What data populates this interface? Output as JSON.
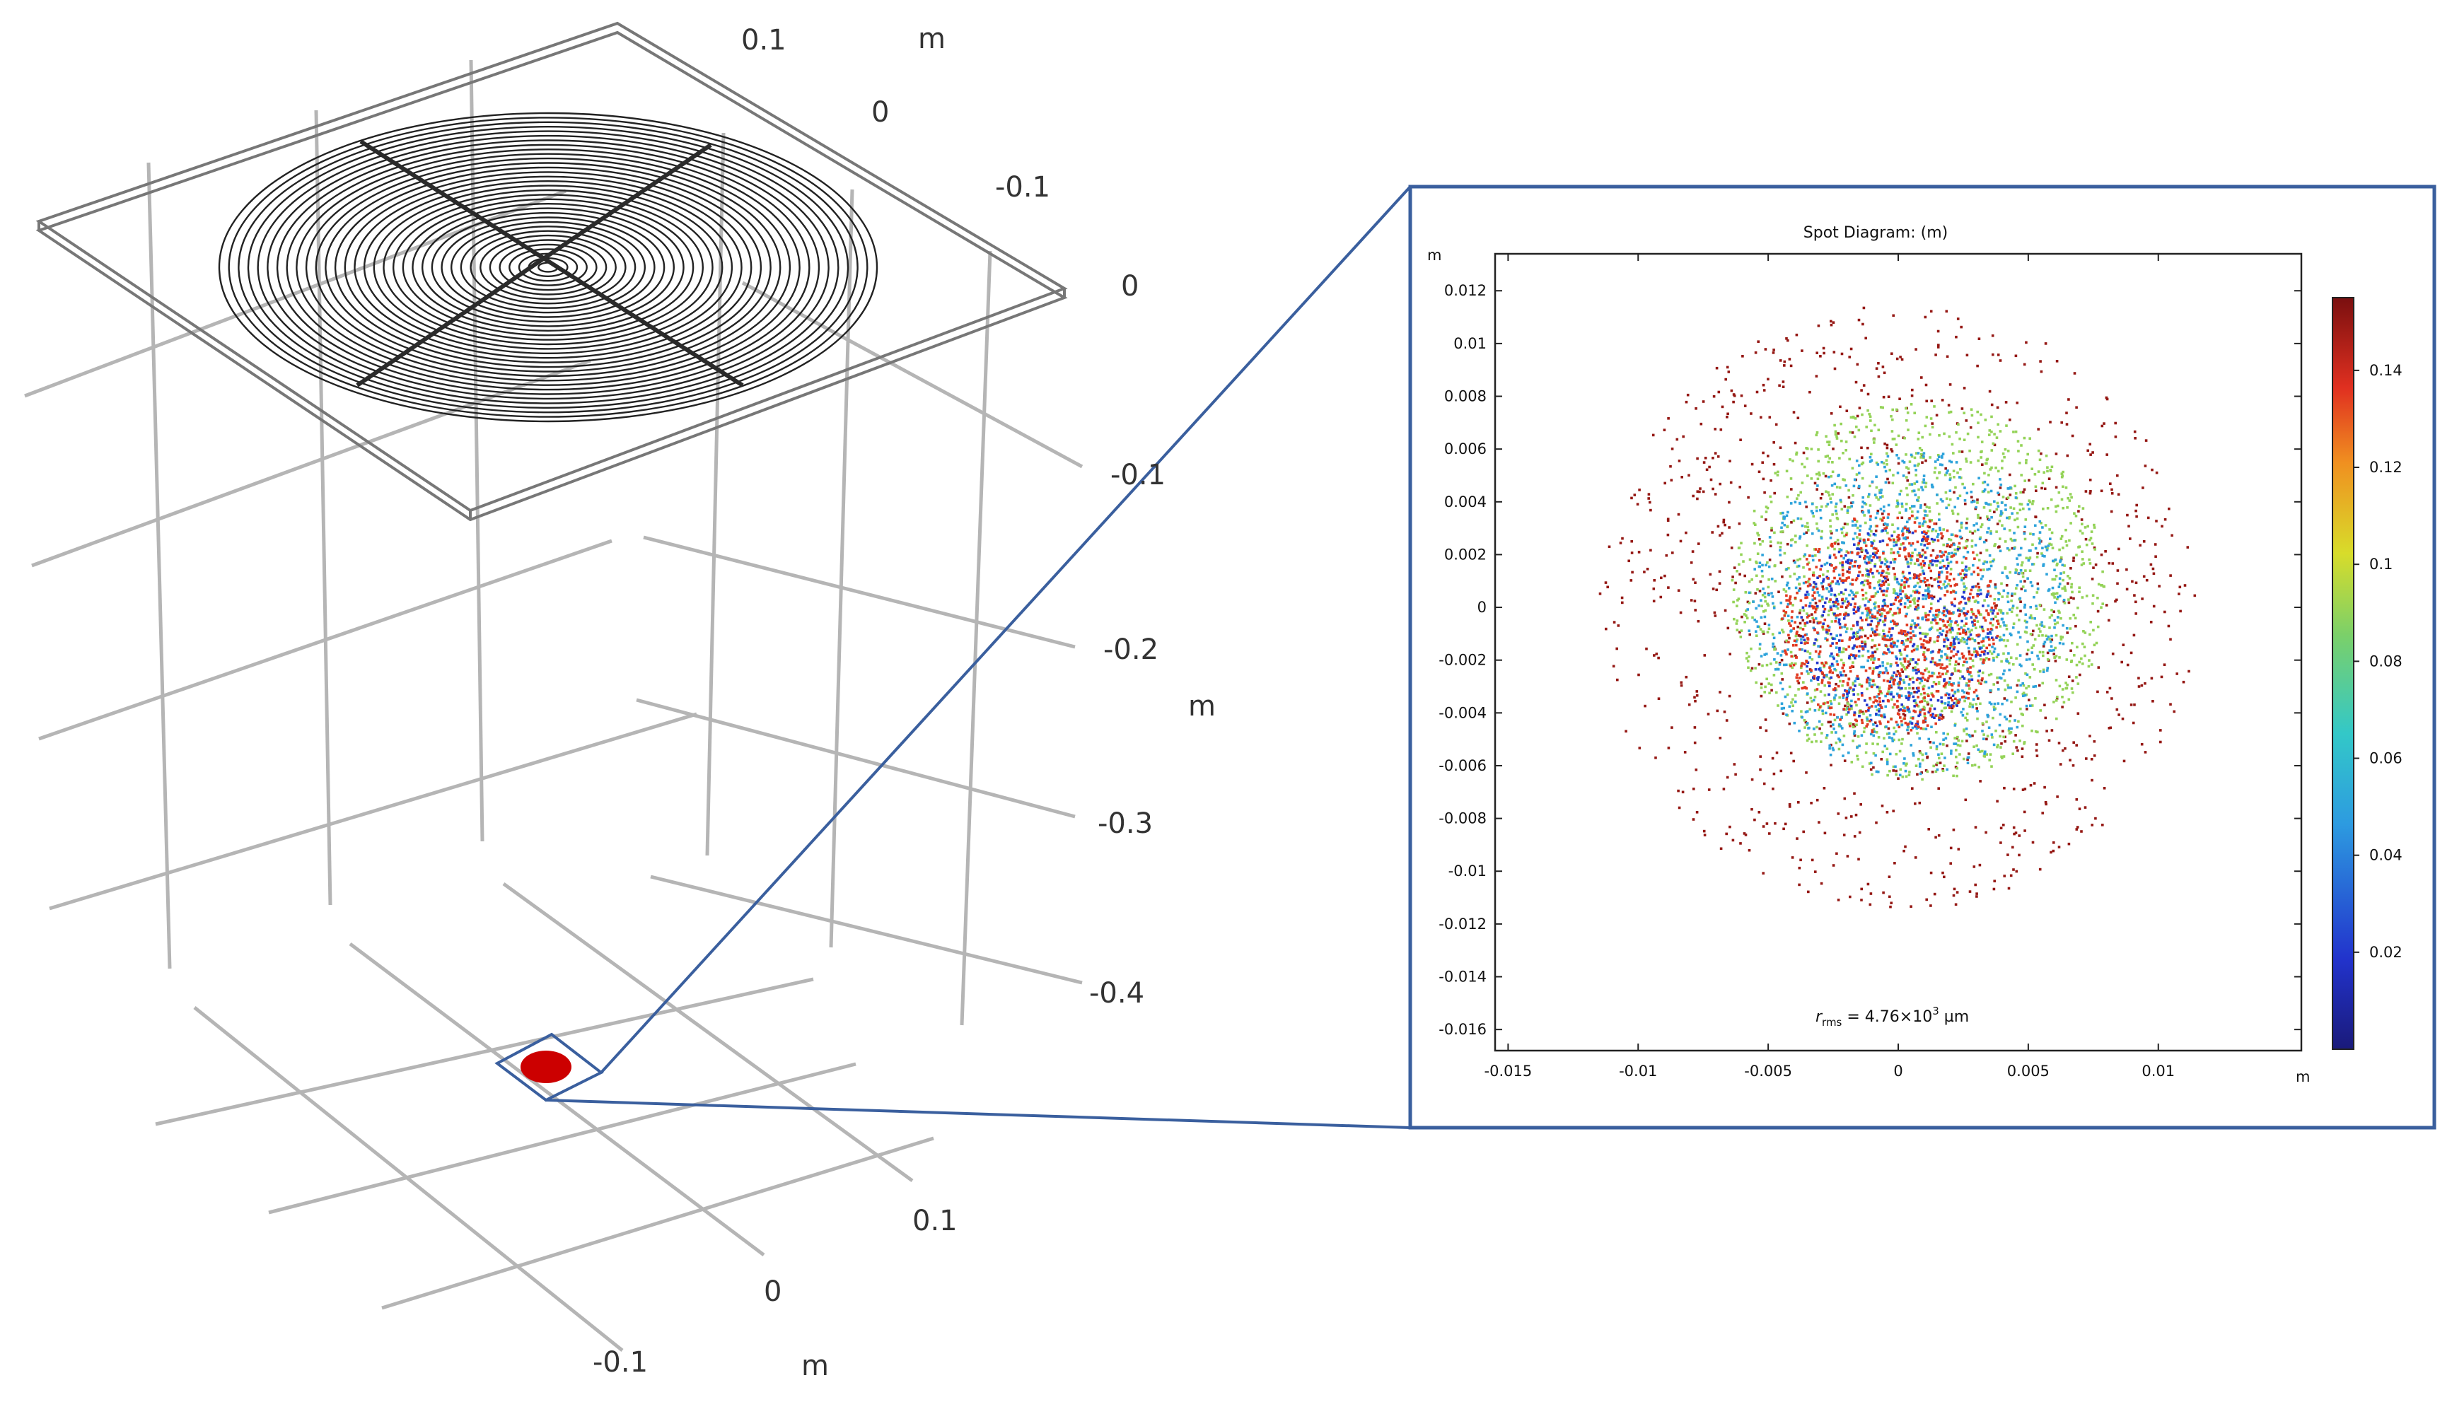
{
  "scene_3d": {
    "top_axis_labels": [
      "0.1",
      "0",
      "-0.1",
      "0"
    ],
    "top_axis_unit": "m",
    "z_axis_labels": [
      "-0.1",
      "-0.2",
      "-0.3",
      "-0.4"
    ],
    "z_axis_unit": "m",
    "bottom_axis_labels": [
      "0.1",
      "0",
      "-0.1"
    ],
    "bottom_axis_unit": "m",
    "spot_color": "#cc0000",
    "zoom_outline_color": "#3a5f9e"
  },
  "chart_data": {
    "type": "scatter",
    "title": "Spot Diagram: (m)",
    "xlabel": "m",
    "ylabel": "m",
    "xlim": [
      -0.0155,
      0.0155
    ],
    "ylim": [
      -0.0168,
      0.0134
    ],
    "x_ticks": [
      "-0.015",
      "-0.01",
      "-0.005",
      "0",
      "0.005",
      "0.01"
    ],
    "y_ticks": [
      "0.012",
      "0.01",
      "0.008",
      "0.006",
      "0.004",
      "0.002",
      "0",
      "-0.002",
      "-0.004",
      "-0.006",
      "-0.008",
      "-0.01",
      "-0.012",
      "-0.014",
      "-0.016"
    ],
    "colorbar_ticks": [
      "0.14",
      "0.12",
      "0.1",
      "0.08",
      "0.06",
      "0.04",
      "0.02"
    ],
    "colorbar_range": [
      0,
      0.155
    ],
    "annotation": "r_rms = 4.76×10³ µm",
    "annotation_parts": [
      "r",
      "rms",
      " = 4.76×10",
      "3",
      " µm"
    ],
    "series": [
      {
        "color_value": 0.15,
        "center": [
          0.0,
          0.0
        ],
        "radius": 0.0115,
        "approx_count": 6000
      },
      {
        "color_value": 0.09,
        "center": [
          0.0008,
          0.0006
        ],
        "radius": 0.0072,
        "approx_count": 9000
      },
      {
        "color_value": 0.05,
        "center": [
          0.0004,
          -0.0002
        ],
        "radius": 0.0062,
        "approx_count": 6000
      },
      {
        "color_value": 0.02,
        "center": [
          0.0,
          -0.0008
        ],
        "radius": 0.0038,
        "approx_count": 2500
      },
      {
        "color_value": 0.135,
        "center": [
          -0.0003,
          -0.0006
        ],
        "radius": 0.0042,
        "approx_count": 5000
      }
    ]
  }
}
